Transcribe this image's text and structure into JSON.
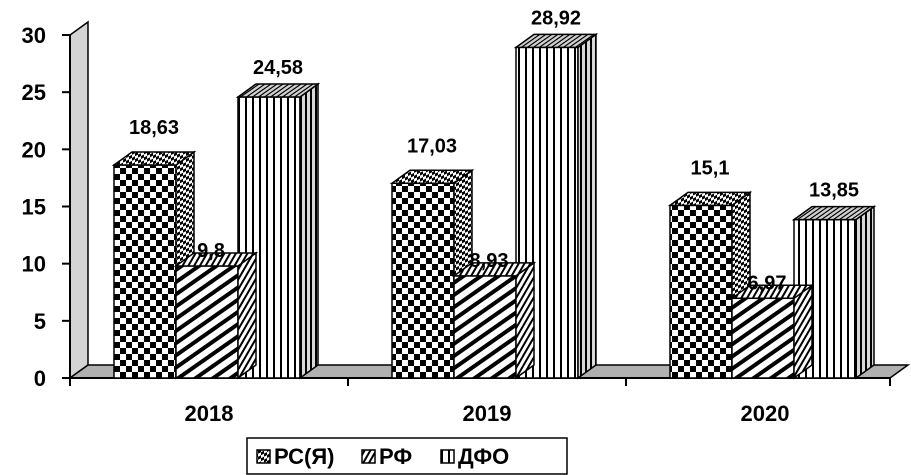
{
  "chart_data": {
    "type": "bar",
    "categories": [
      "2018",
      "2019",
      "2020"
    ],
    "series": [
      {
        "name": "РС(Я)",
        "values": [
          18.63,
          17.03,
          15.1
        ],
        "labels": [
          "18,63",
          "17,03",
          "15,1"
        ],
        "pattern": "checker"
      },
      {
        "name": "РФ",
        "values": [
          9.8,
          8.93,
          6.97
        ],
        "labels": [
          "9,8",
          "8,93",
          "6,97"
        ],
        "pattern": "diagonal"
      },
      {
        "name": "ДФО",
        "values": [
          24.58,
          28.92,
          13.85
        ],
        "labels": [
          "24,58",
          "28,92",
          "13,85"
        ],
        "pattern": "vertical"
      }
    ],
    "title": "",
    "xlabel": "",
    "ylabel": "",
    "ylim": [
      0,
      30
    ],
    "yticks": [
      "0",
      "5",
      "10",
      "15",
      "20",
      "25",
      "30"
    ],
    "grid": false,
    "legend": "bottom",
    "three_d": true
  }
}
